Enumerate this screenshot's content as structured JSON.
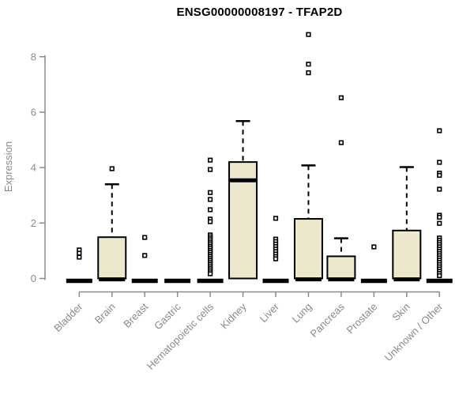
{
  "colors": {
    "background": "#FFFFFF",
    "box_fill": "#EDE8CD",
    "box_stroke": "#000000",
    "median": "#000000",
    "outlier_stroke": "#000000",
    "axis": "#8A8A8A",
    "title_color": "#000000"
  },
  "chart_data": {
    "type": "boxplot",
    "title": "ENSG00000008197 - TFAP2D",
    "ylabel": "Expression",
    "xlabel": "",
    "ylim": [
      0,
      8.8
    ],
    "yticks": [
      0,
      2,
      4,
      6,
      8
    ],
    "grid": false,
    "legend": "none",
    "categories": [
      "Bladder",
      "Brain",
      "Breast",
      "Gastric",
      "Hematopoietic cells",
      "Kidney",
      "Liver",
      "Lung",
      "Pancreas",
      "Prostate",
      "Skin",
      "Unknown / Other"
    ],
    "series": [
      {
        "category": "Bladder",
        "flat": true,
        "q1": 0,
        "median": 0,
        "q3": 0,
        "whisker_high": 0,
        "outliers": [
          1.03,
          0.91,
          0.77
        ]
      },
      {
        "category": "Brain",
        "flat": false,
        "q1": 0,
        "median": 0.04,
        "q3": 1.49,
        "whisker_high": 3.4,
        "outliers": [
          3.96
        ]
      },
      {
        "category": "Breast",
        "flat": true,
        "q1": 0,
        "median": 0,
        "q3": 0,
        "whisker_high": 0,
        "outliers": [
          1.48,
          0.83
        ]
      },
      {
        "category": "Gastric",
        "flat": true,
        "q1": 0,
        "median": 0,
        "q3": 0,
        "whisker_high": 0,
        "outliers": []
      },
      {
        "category": "Hematopoietic cells",
        "flat": true,
        "q1": 0,
        "median": 0,
        "q3": 0,
        "whisker_high": 0,
        "outliers": [
          4.27,
          3.93,
          3.1,
          2.85,
          2.48,
          2.14,
          2.05,
          1.57,
          1.5,
          1.43,
          1.36,
          1.29,
          1.22,
          1.15,
          1.08,
          1.01,
          0.94,
          0.87,
          0.8,
          0.73,
          0.66,
          0.59,
          0.52,
          0.45,
          0.38,
          0.31,
          0.24,
          0.17
        ]
      },
      {
        "category": "Kidney",
        "flat": false,
        "q1": 0,
        "median": 3.54,
        "q3": 4.2,
        "whisker_high": 5.68,
        "outliers": []
      },
      {
        "category": "Liver",
        "flat": true,
        "q1": 0,
        "median": 0,
        "q3": 0,
        "whisker_high": 0,
        "outliers": [
          2.17,
          1.42,
          1.33,
          1.24,
          1.15,
          1.06,
          0.97,
          0.88,
          0.79,
          0.71
        ]
      },
      {
        "category": "Lung",
        "flat": false,
        "q1": 0,
        "median": 0.04,
        "q3": 2.15,
        "whisker_high": 4.08,
        "outliers": [
          8.8,
          7.73,
          7.42
        ]
      },
      {
        "category": "Pancreas",
        "flat": false,
        "q1": 0,
        "median": 0.04,
        "q3": 0.8,
        "whisker_high": 1.45,
        "outliers": [
          6.52,
          4.9
        ]
      },
      {
        "category": "Prostate",
        "flat": true,
        "q1": 0,
        "median": 0,
        "q3": 0,
        "whisker_high": 0,
        "outliers": [
          1.14
        ]
      },
      {
        "category": "Skin",
        "flat": false,
        "q1": 0,
        "median": 0.04,
        "q3": 1.73,
        "whisker_high": 4.02,
        "outliers": []
      },
      {
        "category": "Unknown / Other",
        "flat": true,
        "q1": 0,
        "median": 0,
        "q3": 0,
        "whisker_high": 0,
        "outliers": [
          5.33,
          4.19,
          3.8,
          3.72,
          3.22,
          2.28,
          2.21,
          1.99,
          1.46,
          1.38,
          1.3,
          1.22,
          1.14,
          1.06,
          0.98,
          0.9,
          0.82,
          0.74,
          0.66,
          0.58,
          0.5,
          0.42,
          0.34,
          0.26,
          0.18,
          0.1
        ]
      }
    ]
  }
}
